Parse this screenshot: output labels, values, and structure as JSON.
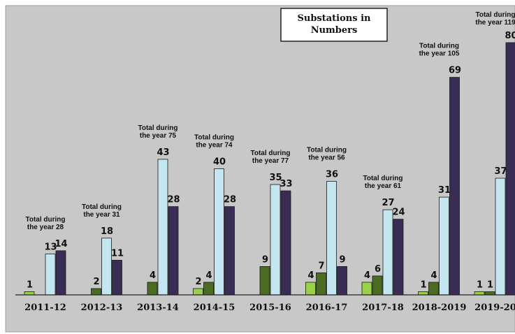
{
  "chart_data": {
    "type": "bar",
    "title_lines": [
      "Substations in",
      "Numbers"
    ],
    "categories": [
      "2011-12",
      "2012-13",
      "2013-14",
      "2014-15",
      "2015-16",
      "2016-17",
      "2017-18",
      "2018-2019",
      "2019-20"
    ],
    "series": [
      {
        "color": "#9ad14b",
        "values": [
          1,
          0,
          0,
          2,
          0,
          4,
          4,
          1,
          1
        ],
        "labels": [
          "1",
          "",
          "",
          "2",
          "",
          "4",
          "4",
          "1",
          "1"
        ]
      },
      {
        "color": "#4b6b23",
        "values": [
          0,
          2,
          4,
          4,
          9,
          7,
          6,
          4,
          1
        ],
        "labels": [
          "",
          "2",
          "4",
          "4",
          "9",
          "7",
          "6",
          "4",
          "1"
        ]
      },
      {
        "color": "#c4e6f1",
        "values": [
          13,
          18,
          43,
          40,
          35,
          36,
          27,
          31,
          37
        ],
        "labels": [
          "13",
          "18",
          "43",
          "40",
          "35",
          "36",
          "27",
          "31",
          "37"
        ]
      },
      {
        "color": "#3a2d55",
        "values": [
          14,
          11,
          28,
          28,
          33,
          9,
          24,
          69,
          80
        ],
        "labels": [
          "14",
          "11",
          "28",
          "28",
          "33",
          "9",
          "24",
          "69",
          "80"
        ]
      }
    ],
    "totals": [
      [
        "Total during",
        "the year 28"
      ],
      [
        "Total during",
        "the year 31"
      ],
      [
        "Total during",
        "the year 75"
      ],
      [
        "Total during",
        "the year 74"
      ],
      [
        "Total during",
        "the year 77"
      ],
      [
        "Total during",
        "the year 56"
      ],
      [
        "Total during",
        "the year 61"
      ],
      [
        "Total during",
        "the year 105"
      ],
      [
        "Total during",
        "the year 119"
      ]
    ],
    "ylim": [
      0,
      82
    ],
    "grid": false,
    "legend": "none"
  }
}
